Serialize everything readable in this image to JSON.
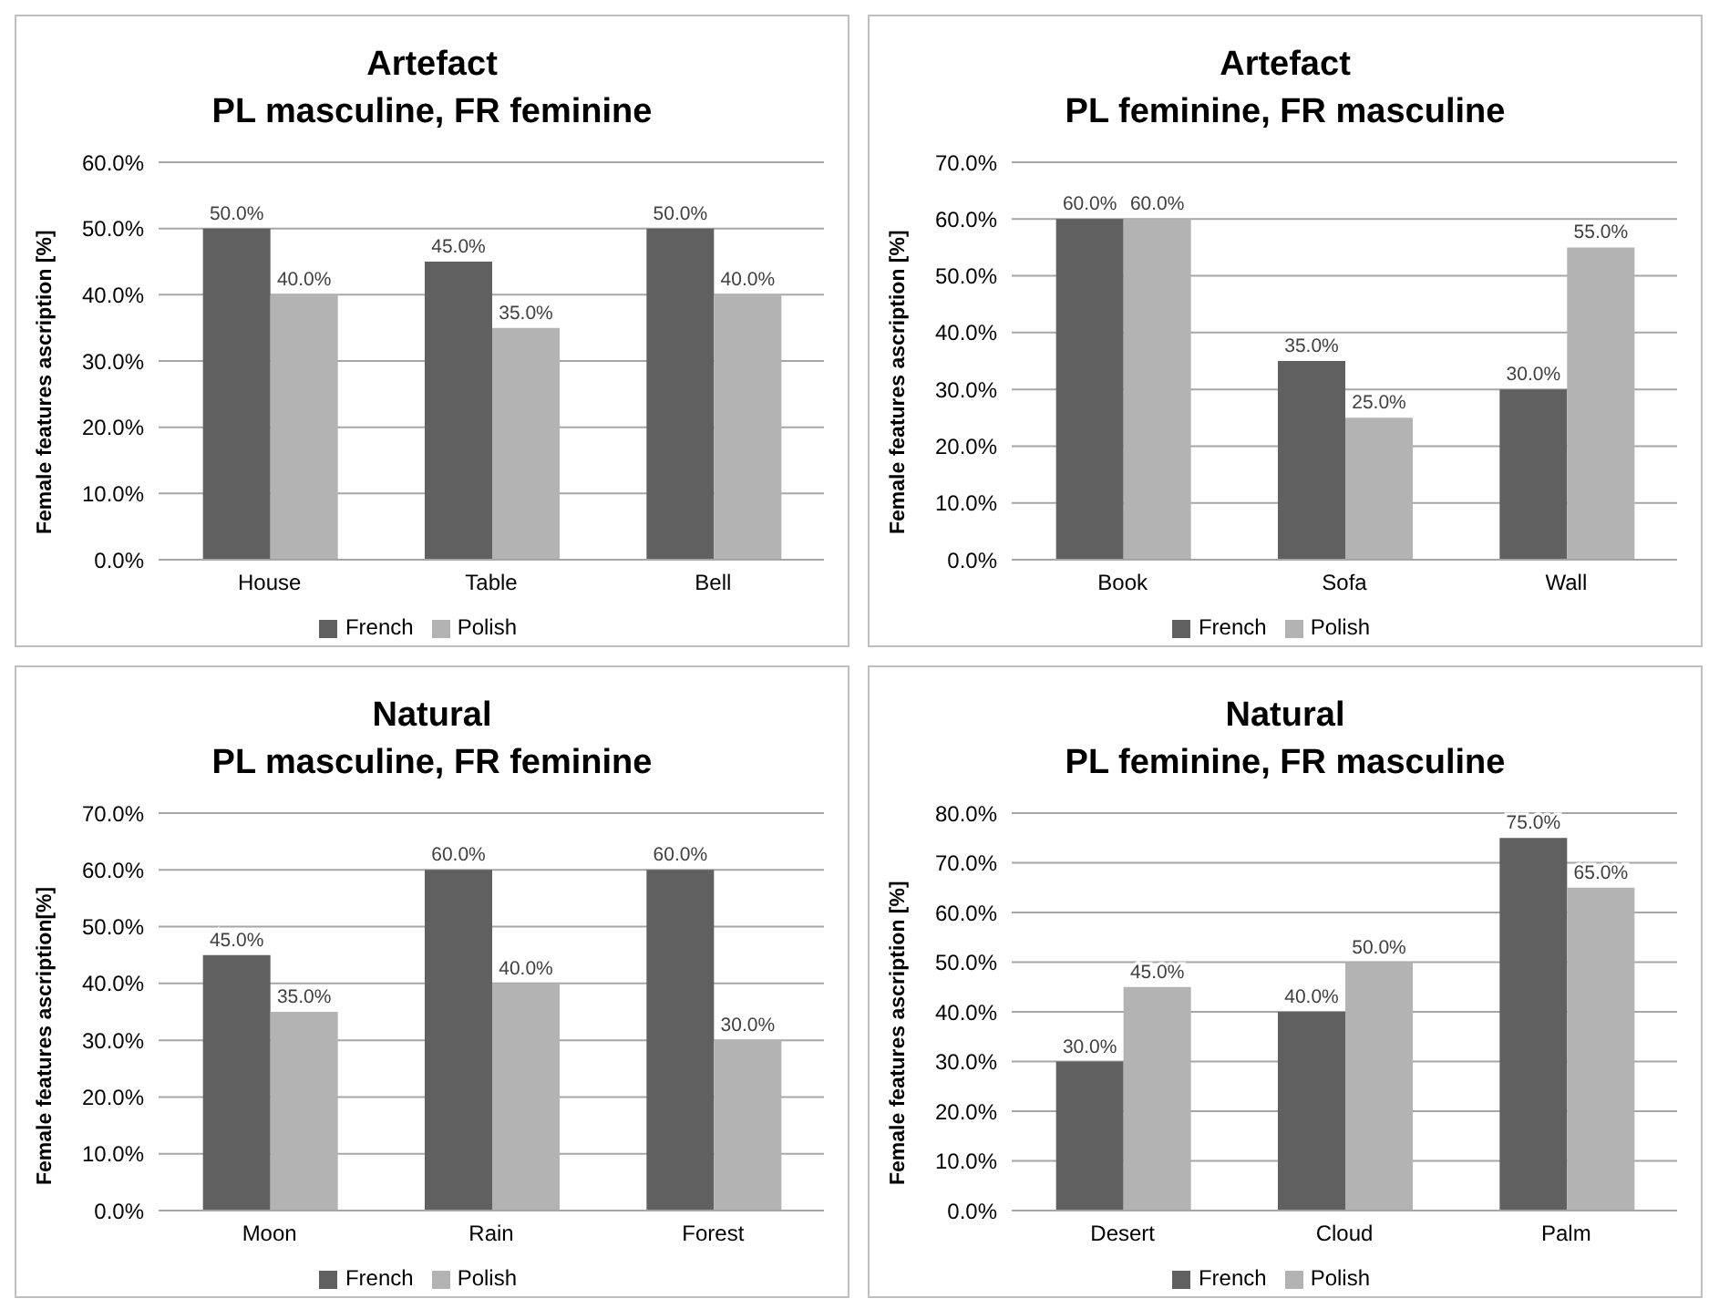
{
  "chart_data": [
    {
      "type": "bar",
      "title": "Artefact",
      "subtitle": "PL masculine, FR feminine",
      "ylabel": "Female features ascription [%]",
      "categories": [
        "House",
        "Table",
        "Bell"
      ],
      "series": [
        {
          "name": "French",
          "color": "#606060",
          "values": [
            50,
            45,
            50
          ],
          "value_labels": [
            "50.0%",
            "45.0%",
            "50.0%"
          ]
        },
        {
          "name": "Polish",
          "color": "#b3b3b3",
          "values": [
            40,
            35,
            40
          ],
          "value_labels": [
            "40.0%",
            "35.0%",
            "40.0%"
          ]
        }
      ],
      "ylim": [
        0,
        60
      ],
      "yticks": [
        {
          "value": 0,
          "label": "0.0%"
        },
        {
          "value": 10,
          "label": "10.0%"
        },
        {
          "value": 20,
          "label": "20.0%"
        },
        {
          "value": 30,
          "label": "30.0%"
        },
        {
          "value": 40,
          "label": "40.0%"
        },
        {
          "value": 50,
          "label": "50.0%"
        },
        {
          "value": 60,
          "label": "60.0%"
        }
      ],
      "grid": "y",
      "legend": "bottom"
    },
    {
      "type": "bar",
      "title": "Artefact",
      "subtitle": "PL feminine, FR masculine",
      "ylabel": "Female features ascription [%]",
      "categories": [
        "Book",
        "Sofa",
        "Wall"
      ],
      "series": [
        {
          "name": "French",
          "color": "#606060",
          "values": [
            60,
            35,
            30
          ],
          "value_labels": [
            "60.0%",
            "35.0%",
            "30.0%"
          ]
        },
        {
          "name": "Polish",
          "color": "#b3b3b3",
          "values": [
            60,
            25,
            55
          ],
          "value_labels": [
            "60.0%",
            "25.0%",
            "55.0%"
          ]
        }
      ],
      "ylim": [
        0,
        70
      ],
      "yticks": [
        {
          "value": 0,
          "label": "0.0%"
        },
        {
          "value": 10,
          "label": "10.0%"
        },
        {
          "value": 20,
          "label": "20.0%"
        },
        {
          "value": 30,
          "label": "30.0%"
        },
        {
          "value": 40,
          "label": "40.0%"
        },
        {
          "value": 50,
          "label": "50.0%"
        },
        {
          "value": 60,
          "label": "60.0%"
        },
        {
          "value": 70,
          "label": "70.0%"
        }
      ],
      "grid": "y",
      "legend": "bottom"
    },
    {
      "type": "bar",
      "title": "Natural",
      "subtitle": "PL masculine, FR feminine",
      "ylabel": "Female features ascription[%]",
      "categories": [
        "Moon",
        "Rain",
        "Forest"
      ],
      "series": [
        {
          "name": "French",
          "color": "#606060",
          "values": [
            45,
            60,
            60
          ],
          "value_labels": [
            "45.0%",
            "60.0%",
            "60.0%"
          ]
        },
        {
          "name": "Polish",
          "color": "#b3b3b3",
          "values": [
            35,
            40,
            30
          ],
          "value_labels": [
            "35.0%",
            "40.0%",
            "30.0%"
          ]
        }
      ],
      "ylim": [
        0,
        70
      ],
      "yticks": [
        {
          "value": 0,
          "label": "0.0%"
        },
        {
          "value": 10,
          "label": "10.0%"
        },
        {
          "value": 20,
          "label": "20.0%"
        },
        {
          "value": 30,
          "label": "30.0%"
        },
        {
          "value": 40,
          "label": "40.0%"
        },
        {
          "value": 50,
          "label": "50.0%"
        },
        {
          "value": 60,
          "label": "60.0%"
        },
        {
          "value": 70,
          "label": "70.0%"
        }
      ],
      "grid": "y",
      "legend": "bottom"
    },
    {
      "type": "bar",
      "title": "Natural",
      "subtitle": "PL feminine, FR masculine",
      "ylabel": "Female features ascription [%]",
      "categories": [
        "Desert",
        "Cloud",
        "Palm"
      ],
      "series": [
        {
          "name": "French",
          "color": "#606060",
          "values": [
            30,
            40,
            75
          ],
          "value_labels": [
            "30.0%",
            "40.0%",
            "75.0%"
          ]
        },
        {
          "name": "Polish",
          "color": "#b3b3b3",
          "values": [
            45,
            50,
            65
          ],
          "value_labels": [
            "45.0%",
            "50.0%",
            "65.0%"
          ]
        }
      ],
      "ylim": [
        0,
        80
      ],
      "yticks": [
        {
          "value": 0,
          "label": "0.0%"
        },
        {
          "value": 10,
          "label": "10.0%"
        },
        {
          "value": 20,
          "label": "20.0%"
        },
        {
          "value": 30,
          "label": "30.0%"
        },
        {
          "value": 40,
          "label": "40.0%"
        },
        {
          "value": 50,
          "label": "50.0%"
        },
        {
          "value": 60,
          "label": "60.0%"
        },
        {
          "value": 70,
          "label": "70.0%"
        },
        {
          "value": 80,
          "label": "80.0%"
        }
      ],
      "grid": "y",
      "legend": "bottom"
    }
  ]
}
